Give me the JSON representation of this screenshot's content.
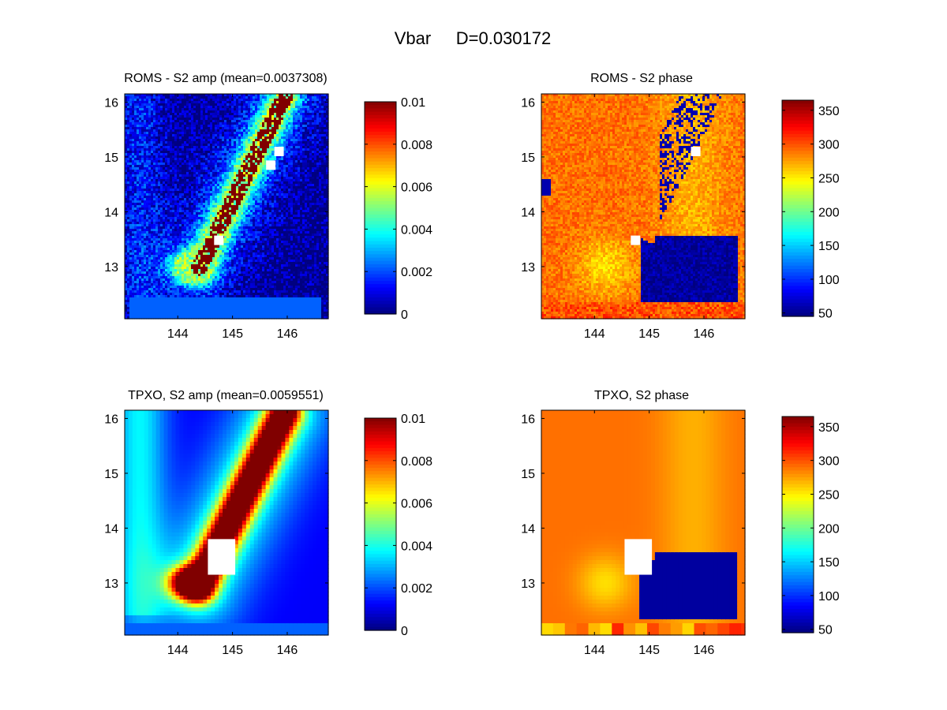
{
  "figure": {
    "title_var": "Vbar",
    "title_metric": "D=0.030172"
  },
  "chart_data": [
    {
      "type": "heatmap",
      "id": "roms_amp",
      "title": "ROMS - S2 amp (mean=0.0037308)",
      "xticks": [
        144,
        145,
        146
      ],
      "yticks": [
        13,
        14,
        15,
        16
      ],
      "xlim": [
        143.03,
        146.75
      ],
      "ylim": [
        12.05,
        16.15
      ],
      "colorbar": {
        "ticks": [
          "0.01",
          "0.008",
          "0.006",
          "0.004",
          "0.002",
          "0"
        ],
        "range": [
          0,
          0.01
        ]
      },
      "colormap": "jet",
      "field": "amp",
      "noisy": true,
      "mask_cells": [
        [
          144.75,
          13.48
        ],
        [
          145.85,
          15.1
        ],
        [
          145.7,
          14.85
        ]
      ]
    },
    {
      "type": "heatmap",
      "id": "roms_phase",
      "title": "ROMS - S2 phase",
      "xticks": [
        144,
        145,
        146
      ],
      "yticks": [
        13,
        14,
        15,
        16
      ],
      "xlim": [
        143.03,
        146.75
      ],
      "ylim": [
        12.05,
        16.15
      ],
      "colorbar": {
        "ticks": [
          "350",
          "300",
          "250",
          "200",
          "150",
          "100",
          "50"
        ],
        "range": [
          45,
          365
        ]
      },
      "colormap": "jet",
      "field": "phase",
      "noisy": true,
      "mask_cells": [
        [
          144.75,
          13.48
        ],
        [
          145.85,
          15.1
        ]
      ]
    },
    {
      "type": "heatmap",
      "id": "tpxo_amp",
      "title": "TPXO, S2 amp (mean=0.0059551)",
      "xticks": [
        144,
        145,
        146
      ],
      "yticks": [
        13,
        14,
        15,
        16
      ],
      "xlim": [
        143.03,
        146.75
      ],
      "ylim": [
        12.05,
        16.15
      ],
      "colorbar": {
        "ticks": [
          "0.01",
          "0.008",
          "0.006",
          "0.004",
          "0.002",
          "0"
        ],
        "range": [
          0,
          0.01
        ]
      },
      "colormap": "jet",
      "field": "amp",
      "noisy": false,
      "mask_box": [
        144.55,
        13.15,
        145.05,
        13.8
      ]
    },
    {
      "type": "heatmap",
      "id": "tpxo_phase",
      "title": "TPXO, S2 phase",
      "xticks": [
        144,
        145,
        146
      ],
      "yticks": [
        13,
        14,
        15,
        16
      ],
      "xlim": [
        143.03,
        146.75
      ],
      "ylim": [
        12.05,
        16.15
      ],
      "colorbar": {
        "ticks": [
          "350",
          "300",
          "250",
          "200",
          "150",
          "100",
          "50"
        ],
        "range": [
          45,
          365
        ]
      },
      "colormap": "jet",
      "field": "phase",
      "noisy": false,
      "mask_box": [
        144.55,
        13.15,
        145.05,
        13.8
      ]
    }
  ]
}
